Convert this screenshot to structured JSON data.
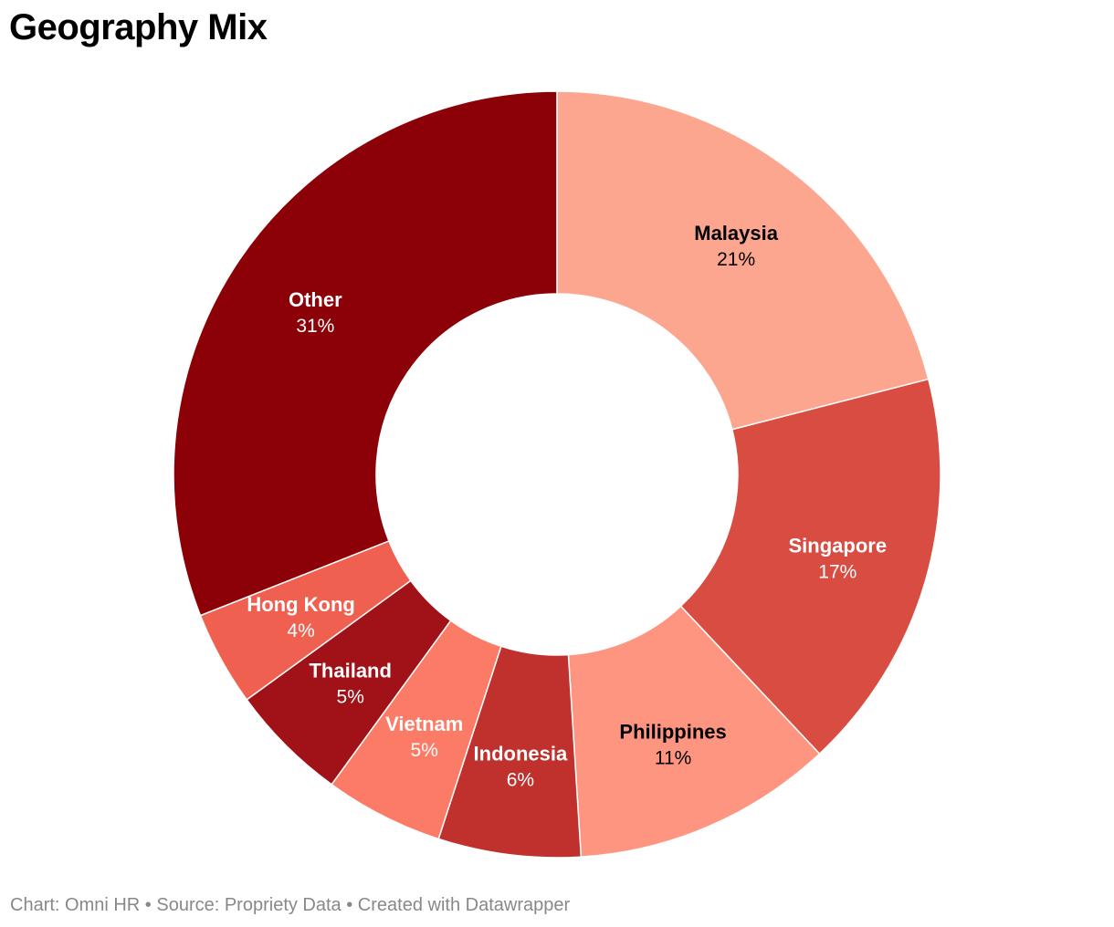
{
  "title": "Geography Mix",
  "footer": "Chart: Omni HR • Source: Propriety Data • Created with Datawrapper",
  "chart_data": {
    "type": "pie",
    "variant": "donut",
    "title": "Geography Mix",
    "start": "top",
    "direction": "clockwise",
    "legend": "none (labels on slices)",
    "slices": [
      {
        "label": "Malaysia",
        "value": 21,
        "value_label": "21%",
        "color": "#fca68f",
        "text_color": "#000000"
      },
      {
        "label": "Singapore",
        "value": 17,
        "value_label": "17%",
        "color": "#d94c42",
        "text_color": "#ffffff"
      },
      {
        "label": "Philippines",
        "value": 11,
        "value_label": "11%",
        "color": "#fd9580",
        "text_color": "#000000"
      },
      {
        "label": "Indonesia",
        "value": 6,
        "value_label": "6%",
        "color": "#c0312d",
        "text_color": "#ffffff"
      },
      {
        "label": "Vietnam",
        "value": 5,
        "value_label": "5%",
        "color": "#fc7b67",
        "text_color": "#ffffff"
      },
      {
        "label": "Thailand",
        "value": 5,
        "value_label": "5%",
        "color": "#a11118",
        "text_color": "#ffffff"
      },
      {
        "label": "Hong Kong",
        "value": 4,
        "value_label": "4%",
        "color": "#f06051",
        "text_color": "#ffffff"
      },
      {
        "label": "Other",
        "value": 31,
        "value_label": "31%",
        "color": "#8c0007",
        "text_color": "#ffffff"
      }
    ]
  }
}
